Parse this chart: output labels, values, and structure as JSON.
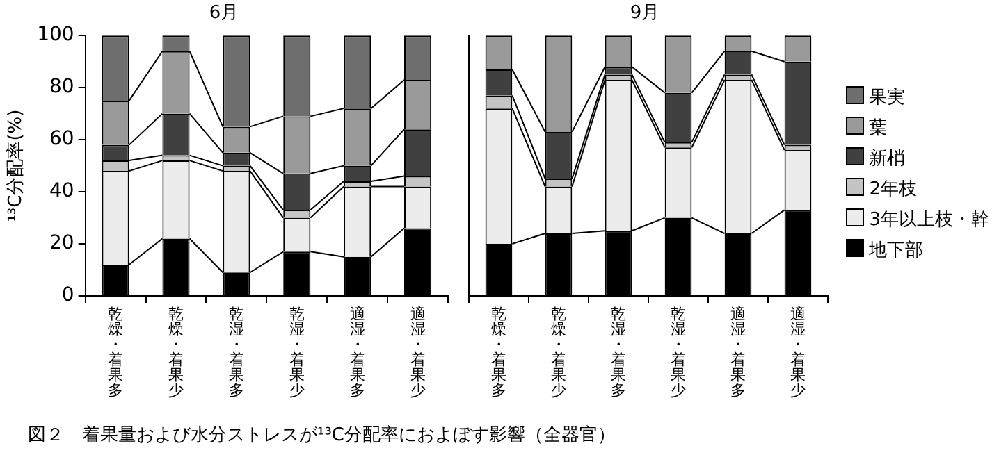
{
  "chart_data": [
    {
      "type": "bar",
      "title": "6月",
      "ylabel": "¹³C分配率(%)",
      "stacked": true,
      "grid": false,
      "legend": false,
      "ylim": [
        0,
        100
      ],
      "yticks": [
        0,
        20,
        40,
        60,
        80,
        100
      ],
      "annotations": [
        "図２　着果量および水分ストレスが¹³C分配率におよぼす影響（全器官）"
      ],
      "categories": [
        "乾燥・着果多",
        "乾燥・着果少",
        "乾湿・着果多",
        "乾湿・着果少",
        "適湿・着果多",
        "適湿・着果少"
      ],
      "series": [
        {
          "color": "#000000",
          "values": [
            12,
            22,
            9,
            17,
            15,
            26
          ]
        },
        {
          "color": "#ececec",
          "values": [
            36,
            30,
            39,
            13,
            27,
            16
          ]
        },
        {
          "color": "#c4c4c4",
          "values": [
            4,
            2,
            2,
            3,
            2,
            4
          ]
        },
        {
          "color": "#404040",
          "values": [
            6,
            16,
            5,
            14,
            6,
            18
          ]
        },
        {
          "color": "#9a9a9a",
          "values": [
            17,
            24,
            10,
            22,
            22,
            19
          ]
        },
        {
          "color": "#6e6e6e",
          "values": [
            25,
            6,
            35,
            31,
            28,
            17
          ]
        }
      ]
    },
    {
      "type": "bar",
      "title": "9月",
      "stacked": true,
      "grid": false,
      "legend": "right",
      "tick_labels": "x",
      "ylim": [
        0,
        100
      ],
      "yticks": [
        0,
        20,
        40,
        60,
        80,
        100
      ],
      "categories": [
        "乾燥・着果多",
        "乾燥・着果少",
        "乾湿・着果多",
        "乾湿・着果少",
        "適湿・着果多",
        "適湿・着果少"
      ],
      "series": [
        {
          "name": "地下部",
          "color": "#000000",
          "values": [
            20,
            24,
            25,
            30,
            24,
            33
          ]
        },
        {
          "name": "3年以上枝・幹",
          "color": "#ececec",
          "values": [
            52,
            18,
            58,
            27,
            59,
            23
          ]
        },
        {
          "name": "2年枝",
          "color": "#c4c4c4",
          "values": [
            5,
            3,
            2,
            2,
            2,
            2
          ]
        },
        {
          "name": "新梢",
          "color": "#404040",
          "values": [
            10,
            18,
            3,
            19,
            9,
            32
          ]
        },
        {
          "name": "葉",
          "color": "#9a9a9a",
          "values": [
            13,
            37,
            12,
            22,
            6,
            10
          ]
        },
        {
          "name": "果実",
          "color": "#6e6e6e",
          "values": [
            0,
            0,
            0,
            0,
            0,
            0
          ]
        }
      ]
    }
  ]
}
